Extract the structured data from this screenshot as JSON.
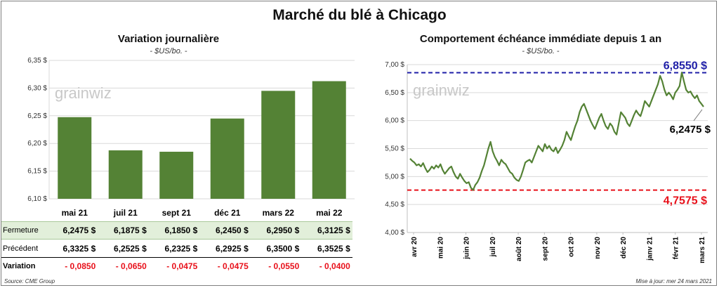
{
  "title": "Marché du blé à Chicago",
  "source": "Source: CME Group",
  "updated": "Mise à jour: mer 24 mars 2021",
  "watermark": "grainwiz",
  "colors": {
    "bar": "#548235",
    "line": "#548235",
    "max": "#1f1fa8",
    "min": "#e8101a",
    "neg": "#e8101a",
    "row_bg": "#e2efda"
  },
  "chart_data": [
    {
      "type": "bar",
      "title": "Variation journalière",
      "subtitle": "- $US/bo. -",
      "categories": [
        "mai 21",
        "juil 21",
        "sept 21",
        "déc 21",
        "mars 22",
        "mai 22"
      ],
      "values": [
        6.2475,
        6.1875,
        6.185,
        6.245,
        6.295,
        6.3125
      ],
      "ylim": [
        6.1,
        6.35
      ],
      "yticks": [
        "6,10 $",
        "6,15 $",
        "6,20 $",
        "6,25 $",
        "6,30 $",
        "6,35 $"
      ],
      "table": {
        "rows": [
          {
            "label": "Fermeture",
            "cells": [
              "6,2475  $",
              "6,1875  $",
              "6,1850  $",
              "6,2450  $",
              "6,2950  $",
              "6,3125  $"
            ]
          },
          {
            "label": "Précédent",
            "cells": [
              "6,3325  $",
              "6,2525  $",
              "6,2325  $",
              "6,2925  $",
              "6,3500  $",
              "6,3525  $"
            ]
          },
          {
            "label": "Variation",
            "cells": [
              "- 0,0850",
              "- 0,0650",
              "- 0,0475",
              "- 0,0475",
              "- 0,0550",
              "- 0,0400"
            ]
          }
        ]
      }
    },
    {
      "type": "line",
      "title": "Comportement  échéance immédiate depuis 1 an",
      "subtitle": "- $US/bo. -",
      "ylim": [
        4.0,
        7.0
      ],
      "yticks": [
        "4,00 $",
        "4,50 $",
        "5,00 $",
        "5,50 $",
        "6,00 $",
        "6,50 $",
        "7,00 $"
      ],
      "xticks": [
        "avr 20",
        "mai 20",
        "juin 20",
        "juil 20",
        "août 20",
        "sept 20",
        "oct 20",
        "nov 20",
        "déc 20",
        "janv 21",
        "févr 21",
        "mars 21"
      ],
      "max": {
        "value": 6.855,
        "label": "6,8550 $"
      },
      "min": {
        "value": 4.7575,
        "label": "4,7575 $"
      },
      "last": {
        "value": 6.2475,
        "label": "6,2475 $"
      },
      "series": [
        {
          "values": [
            5.32,
            5.28,
            5.25,
            5.2,
            5.22,
            5.18,
            5.24,
            5.15,
            5.08,
            5.12,
            5.18,
            5.14,
            5.2,
            5.16,
            5.22,
            5.12,
            5.05,
            5.1,
            5.15,
            5.18,
            5.08,
            5.0,
            4.96,
            5.05,
            4.98,
            4.92,
            4.88,
            4.9,
            4.8,
            4.76,
            4.85,
            4.9,
            4.98,
            5.1,
            5.2,
            5.35,
            5.5,
            5.62,
            5.45,
            5.35,
            5.28,
            5.2,
            5.3,
            5.25,
            5.22,
            5.15,
            5.08,
            5.05,
            4.98,
            4.94,
            4.92,
            5.0,
            5.12,
            5.25,
            5.28,
            5.3,
            5.25,
            5.35,
            5.45,
            5.55,
            5.5,
            5.45,
            5.58,
            5.5,
            5.55,
            5.48,
            5.45,
            5.52,
            5.42,
            5.48,
            5.55,
            5.65,
            5.8,
            5.72,
            5.65,
            5.78,
            5.9,
            6.0,
            6.15,
            6.25,
            6.3,
            6.2,
            6.1,
            6.0,
            5.92,
            5.85,
            5.95,
            6.05,
            6.12,
            6.0,
            5.9,
            5.85,
            5.95,
            5.9,
            5.8,
            5.75,
            5.95,
            6.15,
            6.1,
            6.05,
            5.95,
            5.9,
            6.0,
            6.1,
            6.18,
            6.12,
            6.08,
            6.2,
            6.35,
            6.3,
            6.25,
            6.35,
            6.45,
            6.55,
            6.65,
            6.8,
            6.7,
            6.55,
            6.45,
            6.5,
            6.45,
            6.38,
            6.5,
            6.55,
            6.62,
            6.86,
            6.7,
            6.55,
            6.5,
            6.52,
            6.45,
            6.4,
            6.45,
            6.35,
            6.3,
            6.2475
          ]
        }
      ]
    }
  ]
}
